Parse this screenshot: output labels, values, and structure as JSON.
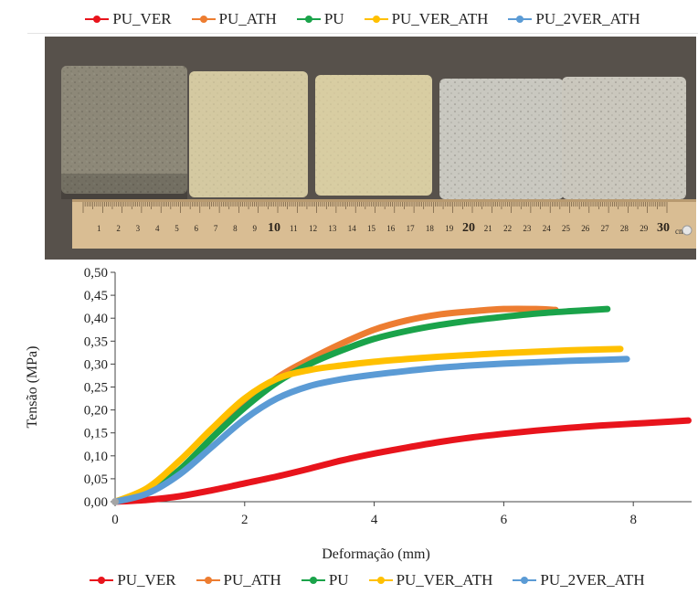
{
  "legend_top": [
    {
      "name": "PU_VER",
      "color": "#e8141c"
    },
    {
      "name": "PU_ATH",
      "color": "#ed7d31"
    },
    {
      "name": "PU",
      "color": "#1aa34a"
    },
    {
      "name": "PU_VER_ATH",
      "color": "#ffc000"
    },
    {
      "name": "PU_2VER_ATH",
      "color": "#5b9bd5"
    }
  ],
  "photo": {
    "ruler_numbers": [
      "1",
      "2",
      "3",
      "4",
      "5",
      "6",
      "7",
      "8",
      "9",
      "10",
      "11",
      "12",
      "13",
      "14",
      "15",
      "16",
      "17",
      "18",
      "19",
      "20",
      "21",
      "22",
      "23",
      "24",
      "25",
      "26",
      "27",
      "28",
      "29",
      "30"
    ],
    "ruler_unit": "cm",
    "sample_colors": [
      "#8d8878",
      "#d4c9a1",
      "#d8cda2",
      "#c9c8c0",
      "#cac7bd"
    ]
  },
  "chart_data": {
    "type": "line",
    "xlabel": "Deformação (mm)",
    "ylabel": "Tensão (MPa)",
    "xlim": [
      0,
      8.9
    ],
    "ylim": [
      0,
      0.5
    ],
    "xticks": [
      "0",
      "2",
      "4",
      "6",
      "8"
    ],
    "yticks": [
      "0,00",
      "0,05",
      "0,10",
      "0,15",
      "0,20",
      "0,25",
      "0,30",
      "0,35",
      "0,40",
      "0,45",
      "0,50"
    ],
    "grid": false,
    "legend": "bottom",
    "series": [
      {
        "name": "PU_VER",
        "color": "#e8141c",
        "x": [
          0,
          0.5,
          1,
          1.5,
          2,
          2.5,
          3,
          3.5,
          4,
          4.5,
          5,
          5.5,
          6,
          6.5,
          7,
          7.5,
          8,
          8.5,
          8.85
        ],
        "y": [
          0,
          0.004,
          0.012,
          0.025,
          0.04,
          0.055,
          0.072,
          0.09,
          0.105,
          0.118,
          0.13,
          0.14,
          0.148,
          0.155,
          0.161,
          0.166,
          0.17,
          0.174,
          0.177
        ]
      },
      {
        "name": "PU_ATH",
        "color": "#ed7d31",
        "x": [
          0,
          0.5,
          1,
          1.5,
          2,
          2.5,
          3,
          3.5,
          4,
          4.5,
          5,
          5.5,
          6,
          6.5,
          6.8
        ],
        "y": [
          0,
          0.02,
          0.07,
          0.14,
          0.21,
          0.27,
          0.31,
          0.345,
          0.375,
          0.395,
          0.408,
          0.415,
          0.42,
          0.42,
          0.418
        ]
      },
      {
        "name": "PU",
        "color": "#1aa34a",
        "x": [
          0,
          0.5,
          1,
          1.5,
          2,
          2.5,
          3,
          3.5,
          4,
          4.5,
          5,
          5.5,
          6,
          6.5,
          7,
          7.6
        ],
        "y": [
          0,
          0.02,
          0.07,
          0.14,
          0.205,
          0.26,
          0.3,
          0.33,
          0.355,
          0.372,
          0.385,
          0.395,
          0.403,
          0.41,
          0.415,
          0.42
        ]
      },
      {
        "name": "PU_VER_ATH",
        "color": "#ffc000",
        "x": [
          0,
          0.5,
          1,
          1.5,
          2,
          2.5,
          3,
          3.5,
          4,
          4.5,
          5,
          5.5,
          6,
          6.5,
          7,
          7.5,
          7.8
        ],
        "y": [
          0,
          0.03,
          0.09,
          0.16,
          0.225,
          0.268,
          0.287,
          0.297,
          0.305,
          0.311,
          0.316,
          0.32,
          0.324,
          0.327,
          0.33,
          0.332,
          0.333
        ]
      },
      {
        "name": "PU_2VER_ATH",
        "color": "#5b9bd5",
        "x": [
          0,
          0.5,
          1,
          1.5,
          2,
          2.5,
          3,
          3.5,
          4,
          4.5,
          5,
          5.5,
          6,
          6.5,
          7,
          7.5,
          7.9
        ],
        "y": [
          0,
          0.018,
          0.06,
          0.12,
          0.18,
          0.225,
          0.252,
          0.267,
          0.277,
          0.285,
          0.292,
          0.297,
          0.301,
          0.304,
          0.307,
          0.309,
          0.311
        ]
      }
    ]
  },
  "legend_bottom": [
    {
      "name": "PU_VER",
      "color": "#e8141c"
    },
    {
      "name": "PU_ATH",
      "color": "#ed7d31"
    },
    {
      "name": "PU",
      "color": "#1aa34a"
    },
    {
      "name": "PU_VER_ATH",
      "color": "#ffc000"
    },
    {
      "name": "PU_2VER_ATH",
      "color": "#5b9bd5"
    }
  ]
}
